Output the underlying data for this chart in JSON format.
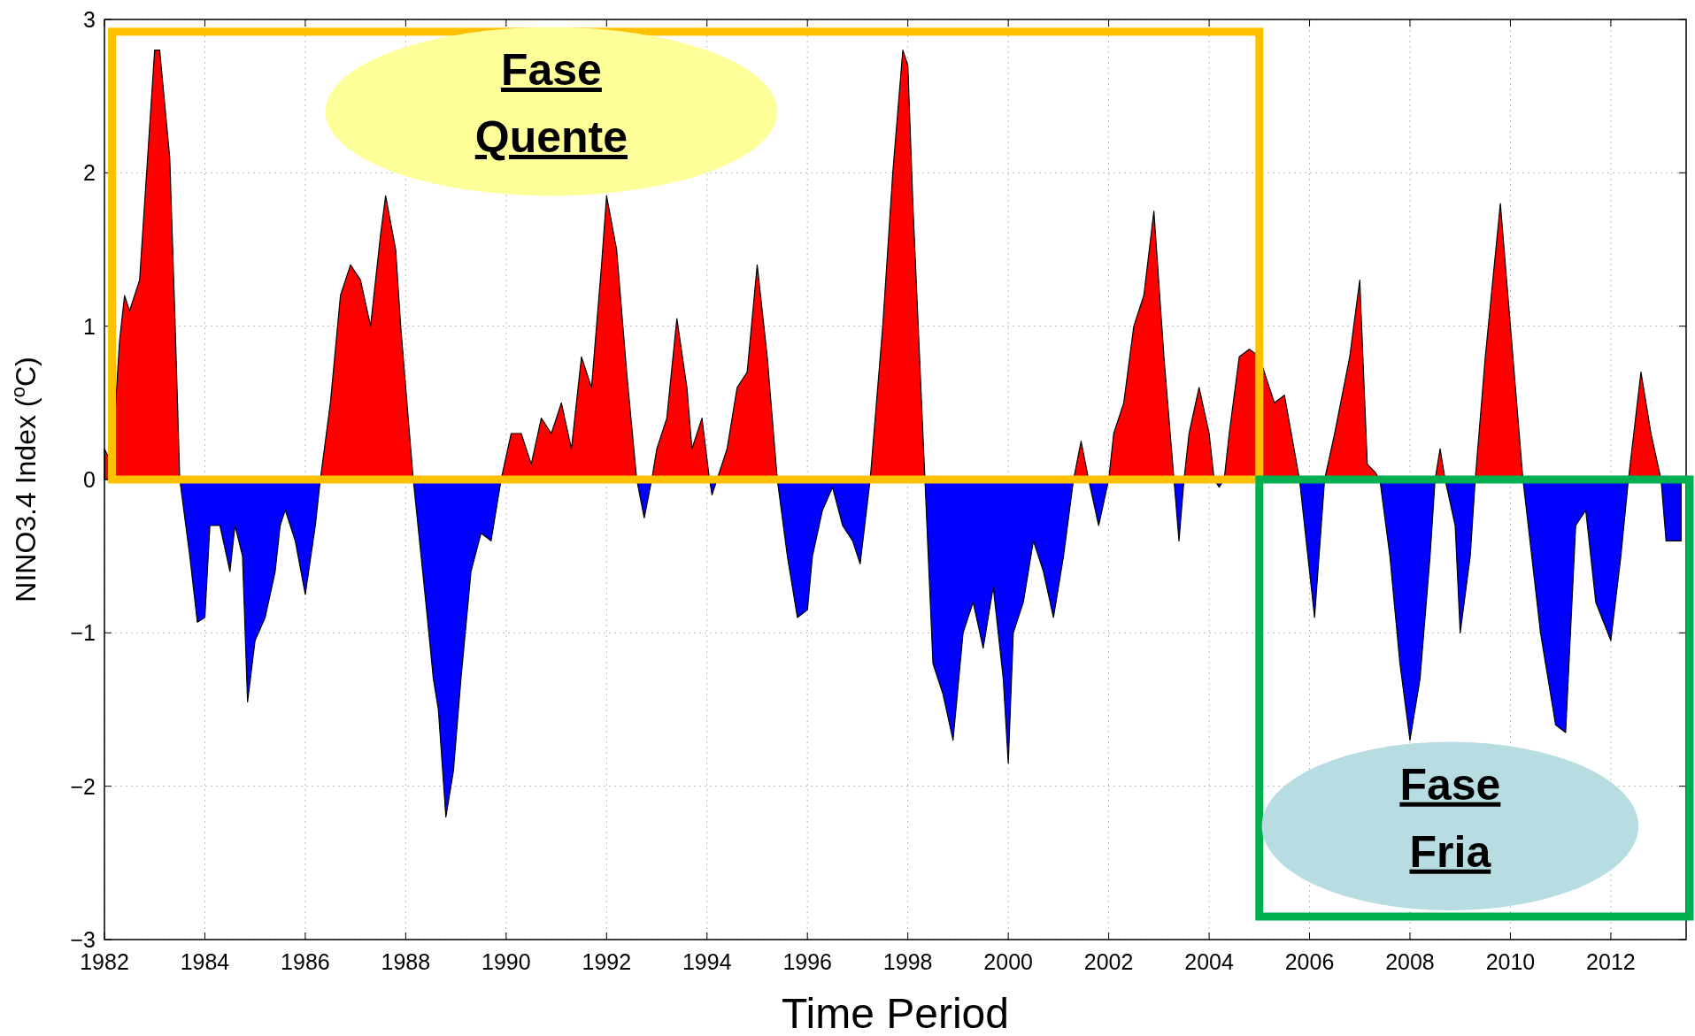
{
  "chart_data": {
    "type": "area",
    "xlabel": "Time Period",
    "ylabel": "NINO3.4 Index ($^{o}$C)",
    "xlim": [
      1982,
      2013.5
    ],
    "ylim": [
      -3,
      3
    ],
    "xticks": [
      1982,
      1984,
      1986,
      1988,
      1990,
      1992,
      1994,
      1996,
      1998,
      2000,
      2002,
      2004,
      2006,
      2008,
      2010,
      2012
    ],
    "yticks": [
      -3,
      -2,
      -1,
      0,
      1,
      2,
      3
    ],
    "grid": true,
    "annotations": [
      "Fase Quente",
      "Fase Fria"
    ],
    "series": [
      {
        "color": "#ff0000",
        "x": [
          1982.0,
          1982.15,
          1982.3,
          1982.4,
          1982.5,
          1982.7,
          1982.9,
          1983.0,
          1983.1,
          1983.3,
          1983.4,
          1983.5,
          1985,
          1986.3,
          1986.5,
          1986.7,
          1986.9,
          1987.1,
          1987.3,
          1987.5,
          1987.6,
          1987.8,
          1987.9,
          1988.15,
          1989,
          1989.9,
          1990.1,
          1990.3,
          1990.5,
          1990.7,
          1990.9,
          1991.1,
          1991.3,
          1991.5,
          1991.7,
          1991.9,
          1992.0,
          1992.2,
          1992.4,
          1992.6,
          1992.75,
          1992.9,
          1993.0,
          1993.2,
          1993.4,
          1993.6,
          1993.7,
          1993.9,
          1994.05,
          1994.1,
          1994.2,
          1994.4,
          1994.6,
          1994.8,
          1995.0,
          1995.2,
          1995.4,
          1996,
          1997.25,
          1997.5,
          1997.7,
          1997.9,
          1998.0,
          1998.1,
          1998.34,
          2000,
          2001.3,
          2001.45,
          2001.6,
          2001.8,
          2002.0,
          2002.1,
          2002.3,
          2002.5,
          2002.7,
          2002.9,
          2003.1,
          2003.3,
          2003.4,
          2003.5,
          2003.6,
          2003.8,
          2004.0,
          2004.1,
          2004.2,
          2004.3,
          2004.4,
          2004.6,
          2004.8,
          2005.0,
          2005.3,
          2005.5,
          2005.8,
          2006,
          2006.3,
          2006.5,
          2006.8,
          2007.0,
          2007.15,
          2007.3,
          2007.4,
          2008,
          2008.5,
          2008.6,
          2008.7,
          2009,
          2009.3,
          2009.5,
          2009.8,
          2010.0,
          2010.25,
          2011,
          2012.35,
          2012.6,
          2012.8,
          2013.0
        ],
        "values": [
          0.2,
          0.1,
          0.9,
          1.2,
          1.1,
          1.3,
          2.3,
          2.8,
          2.8,
          2.1,
          1.1,
          0,
          null,
          0,
          0.5,
          1.2,
          1.4,
          1.3,
          1.0,
          1.6,
          1.85,
          1.5,
          1.0,
          0,
          null,
          0,
          0.3,
          0.3,
          0.1,
          0.4,
          0.3,
          0.5,
          0.2,
          0.8,
          0.6,
          1.4,
          1.85,
          1.5,
          0.7,
          0,
          null,
          0,
          0.2,
          0.4,
          1.05,
          0.6,
          0.2,
          0.4,
          0,
          null,
          0,
          0.2,
          0.6,
          0.7,
          1.4,
          0.8,
          0,
          null,
          0,
          1.0,
          2.0,
          2.8,
          2.7,
          1.8,
          0,
          null,
          0,
          0.25,
          0,
          null,
          0,
          0.3,
          0.5,
          1.0,
          1.2,
          1.75,
          0.8,
          0,
          null,
          0,
          0.3,
          0.6,
          0.3,
          0,
          null,
          0,
          0.3,
          0.8,
          0.85,
          0.8,
          0.5,
          0.55,
          0,
          null,
          0,
          0.3,
          0.8,
          1.3,
          0.1,
          0.05,
          0,
          null,
          0,
          0.2,
          0,
          null,
          0,
          0.8,
          1.8,
          1.0,
          0,
          null,
          0,
          0.7,
          0.3,
          0
        ]
      },
      {
        "color": "#0000ff",
        "x": [
          1983.5,
          1983.7,
          1983.85,
          1984.0,
          1984.1,
          1984.3,
          1984.5,
          1984.6,
          1984.75,
          1984.85,
          1985.0,
          1985.2,
          1985.4,
          1985.5,
          1985.6,
          1985.8,
          1986.0,
          1986.2,
          1986.3,
          1987,
          1988.15,
          1988.4,
          1988.55,
          1988.65,
          1988.8,
          1988.95,
          1989.1,
          1989.3,
          1989.5,
          1989.7,
          1989.9,
          1991,
          1992.6,
          1992.75,
          1992.9,
          1993,
          1994.05,
          1994.1,
          1994.2,
          1994.5,
          1995.4,
          1995.6,
          1995.8,
          1996.0,
          1996.1,
          1996.3,
          1996.5,
          1996.7,
          1996.9,
          1997.05,
          1997.25,
          1997.5,
          1998.34,
          1998.5,
          1998.7,
          1998.9,
          1999.1,
          1999.3,
          1999.5,
          1999.7,
          1999.9,
          2000.0,
          2000.1,
          2000.3,
          2000.5,
          2000.7,
          2000.9,
          2001.1,
          2001.3,
          2001.45,
          2001.6,
          2001.8,
          2002.0,
          2002.5,
          2003.3,
          2003.4,
          2003.5,
          2003.8,
          2004.1,
          2004.2,
          2004.3,
          2005,
          2005.8,
          2006.1,
          2006.3,
          2007,
          2007.4,
          2007.6,
          2007.8,
          2008.0,
          2008.2,
          2008.4,
          2008.5,
          2008.6,
          2008.7,
          2008.9,
          2009.0,
          2009.2,
          2009.3,
          2010,
          2010.25,
          2010.6,
          2010.9,
          2011.1,
          2011.3,
          2011.5,
          2011.7,
          2012.0,
          2012.2,
          2012.35,
          2012.6,
          2013.0,
          2013.1,
          2013.4
        ],
        "values": [
          0,
          -0.5,
          -0.93,
          -0.9,
          -0.3,
          -0.3,
          -0.6,
          -0.3,
          -0.5,
          -1.45,
          -1.05,
          -0.9,
          -0.6,
          -0.3,
          -0.2,
          -0.4,
          -0.75,
          -0.3,
          0,
          null,
          0,
          -0.8,
          -1.3,
          -1.5,
          -2.2,
          -1.9,
          -1.3,
          -0.6,
          -0.35,
          -0.4,
          0,
          null,
          0,
          -0.25,
          0,
          null,
          0,
          -0.1,
          0,
          null,
          0,
          -0.5,
          -0.9,
          -0.85,
          -0.5,
          -0.2,
          -0.05,
          -0.3,
          -0.4,
          -0.55,
          0,
          null,
          0,
          -1.2,
          -1.4,
          -1.7,
          -1.0,
          -0.8,
          -1.1,
          -0.7,
          -1.3,
          -1.85,
          -1.0,
          -0.8,
          -0.4,
          -0.6,
          -0.9,
          -0.5,
          0,
          null,
          0,
          -0.3,
          0,
          null,
          0,
          -0.4,
          0,
          null,
          0,
          -0.05,
          0,
          null,
          0,
          -0.9,
          0,
          null,
          0,
          -0.5,
          -1.2,
          -1.7,
          -1.3,
          -0.5,
          0,
          null,
          0,
          -0.3,
          -1.0,
          -0.5,
          0,
          null,
          0,
          -1.0,
          -1.6,
          -1.65,
          -0.3,
          -0.2,
          -0.8,
          -1.05,
          -0.5,
          0,
          null,
          0,
          -0.4,
          -0.4
        ]
      }
    ]
  }
}
